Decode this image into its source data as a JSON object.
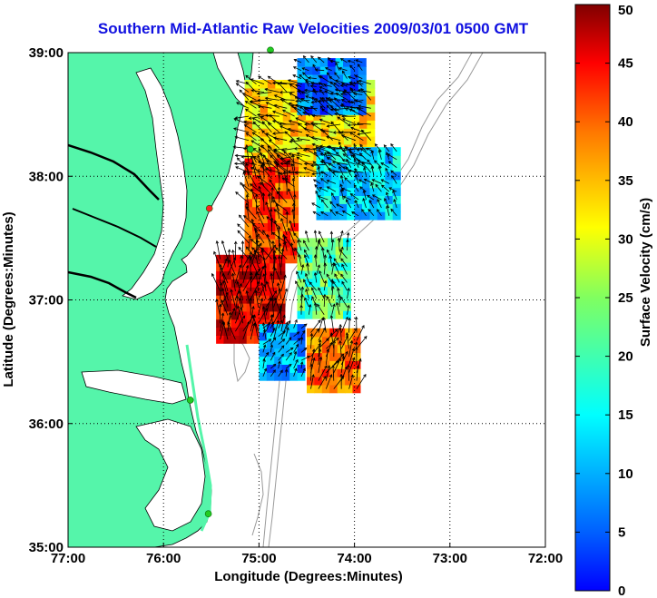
{
  "title": "Southern Mid-Atlantic Raw Velocities 2009/03/01 0500 GMT",
  "chart_data": {
    "type": "map",
    "title": "Southern Mid-Atlantic Raw Velocities 2009/03/01 0500 GMT",
    "xlabel": "Longitude (Degrees:Minutes)",
    "ylabel": "Latitude (Degrees:Minutes)",
    "x_ticks": [
      -77,
      -76,
      -75,
      -74,
      -73,
      -72
    ],
    "x_tick_labels": [
      "77:00",
      "76:00",
      "75:00",
      "74:00",
      "73:00",
      "72:00"
    ],
    "y_ticks": [
      35,
      36,
      37,
      38,
      39
    ],
    "y_tick_labels": [
      "35:00",
      "36:00",
      "37:00",
      "38:00",
      "39:00"
    ],
    "xlim": [
      -77,
      -72
    ],
    "ylim": [
      35,
      39
    ],
    "grid": true,
    "colorbar": {
      "label": "Surface Velocity (cm/s)",
      "range": [
        0,
        50
      ],
      "ticks": [
        0,
        5,
        10,
        15,
        20,
        25,
        30,
        35,
        40,
        45,
        50
      ],
      "tick_labels": [
        "0",
        "5",
        "10",
        "15",
        "20",
        "25",
        "30",
        "35",
        "40",
        "45",
        "50"
      ],
      "colormap": "jet"
    },
    "stations": [
      {
        "lon": -74.88,
        "lat": 39.02,
        "color": "#22cc22"
      },
      {
        "lon": -75.09,
        "lat": 38.22,
        "color": "#22cc22"
      },
      {
        "lon": -75.52,
        "lat": 37.74,
        "color": "#ff2222"
      },
      {
        "lon": -75.72,
        "lat": 36.19,
        "color": "#22cc22"
      },
      {
        "lon": -75.53,
        "lat": 35.27,
        "color": "#22cc22"
      }
    ],
    "velocity_field_regions": [
      {
        "lon_min": -75.15,
        "lon_max": -73.85,
        "lat_min": 38.0,
        "lat_max": 38.75,
        "speed": 33
      },
      {
        "lon_min": -74.6,
        "lon_max": -73.9,
        "lat_min": 38.5,
        "lat_max": 38.95,
        "speed": 12
      },
      {
        "lon_min": -74.4,
        "lon_max": -73.6,
        "lat_min": 37.65,
        "lat_max": 38.2,
        "speed": 17
      },
      {
        "lon_min": -75.15,
        "lon_max": -74.6,
        "lat_min": 37.3,
        "lat_max": 38.1,
        "speed": 40
      },
      {
        "lon_min": -74.6,
        "lon_max": -74.1,
        "lat_min": 36.85,
        "lat_max": 37.45,
        "speed": 23
      },
      {
        "lon_min": -75.45,
        "lon_max": -74.75,
        "lat_min": 36.65,
        "lat_max": 37.3,
        "speed": 45
      },
      {
        "lon_min": -74.5,
        "lon_max": -74.0,
        "lat_min": 36.25,
        "lat_max": 36.75,
        "speed": 38
      },
      {
        "lon_min": -75.0,
        "lon_max": -74.55,
        "lat_min": 36.35,
        "lat_max": 36.75,
        "speed": 14
      }
    ],
    "land_color": "#55f5aa",
    "ocean_color": "#ffffff"
  }
}
